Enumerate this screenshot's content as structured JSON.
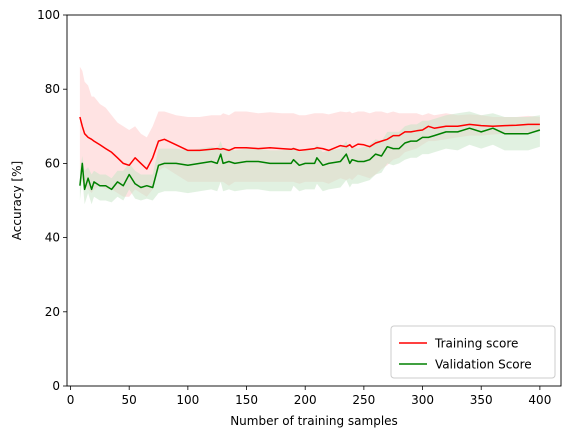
{
  "chart_data": {
    "type": "line",
    "title": "",
    "xlabel": "Number of training samples",
    "ylabel": "Accuracy [%]",
    "xlim": [
      -3,
      418
    ],
    "ylim": [
      0,
      100
    ],
    "x_ticks": [
      0,
      50,
      100,
      150,
      200,
      250,
      300,
      350,
      400
    ],
    "y_ticks": [
      0,
      20,
      40,
      60,
      80,
      100
    ],
    "grid": false,
    "legend_position": "lower-right",
    "x": [
      8,
      10,
      12,
      15,
      18,
      20,
      25,
      30,
      35,
      40,
      45,
      50,
      55,
      60,
      65,
      70,
      75,
      80,
      90,
      100,
      110,
      120,
      125,
      128,
      130,
      135,
      140,
      150,
      160,
      170,
      180,
      188,
      190,
      195,
      200,
      208,
      210,
      215,
      220,
      230,
      235,
      238,
      240,
      245,
      250,
      255,
      260,
      265,
      270,
      275,
      280,
      285,
      290,
      295,
      300,
      305,
      310,
      320,
      330,
      340,
      350,
      360,
      370,
      380,
      390,
      400
    ],
    "series": [
      {
        "name": "Training score",
        "color": "#ff0000",
        "band_color": "#ffcccc",
        "values": [
          72.5,
          70,
          68,
          67,
          66.5,
          66,
          65,
          64,
          63,
          61.5,
          60,
          59.5,
          61.5,
          60,
          58.5,
          61.5,
          66,
          66.5,
          65,
          63.5,
          63.5,
          63.8,
          64,
          63.8,
          64,
          63.5,
          64.2,
          64.2,
          64,
          64.2,
          64,
          63.8,
          64,
          63.5,
          63.7,
          64,
          64.2,
          64,
          63.5,
          64.8,
          64.5,
          65,
          64.3,
          65.2,
          65,
          64.5,
          65.5,
          66,
          66.5,
          67.5,
          67.5,
          68.5,
          68.5,
          68.8,
          69,
          70,
          69.5,
          70,
          70,
          70.5,
          70.2,
          70,
          70.2,
          70.3,
          70.5,
          70.5
        ],
        "upper": [
          86,
          85,
          82,
          81,
          78,
          78,
          76,
          75,
          73,
          71,
          70,
          69,
          70,
          68,
          67,
          70,
          74,
          74,
          73,
          72.5,
          72.5,
          73,
          73,
          73,
          73.5,
          73,
          74,
          74,
          73.5,
          73.8,
          73.5,
          73.5,
          73.5,
          73,
          73,
          73.5,
          73.5,
          73.5,
          73.2,
          74,
          73.8,
          74,
          73.5,
          74,
          74,
          73.5,
          74,
          74,
          73.5,
          74,
          73.5,
          73.5,
          73.5,
          73.5,
          73,
          73.5,
          73,
          73.5,
          73,
          73.2,
          73,
          72.5,
          72.5,
          72.5,
          72.8,
          72.5
        ],
        "lower": [
          58,
          55,
          54,
          53,
          52,
          53,
          54,
          53,
          53,
          52,
          51,
          51,
          53,
          52,
          51,
          53,
          58,
          59,
          57,
          55,
          55,
          55,
          55,
          55,
          55,
          54,
          55,
          55,
          55,
          55,
          55,
          55,
          55,
          54.5,
          55,
          55,
          55,
          55,
          54.5,
          56,
          55.5,
          56,
          55.5,
          57,
          56.5,
          56,
          57,
          58.5,
          59.5,
          61,
          61.5,
          63,
          63.5,
          64,
          65,
          66,
          66,
          66.5,
          67,
          67.5,
          67.5,
          67.8,
          68,
          68.2,
          68.3,
          68.5
        ]
      },
      {
        "name": "Validation Score",
        "color": "#008000",
        "band_color": "#c8e6c8",
        "values": [
          54,
          60,
          53,
          56,
          53,
          55,
          54,
          54,
          53,
          55,
          54,
          57,
          54.5,
          53.5,
          54,
          53.5,
          59.5,
          60,
          60,
          59.5,
          60,
          60.5,
          60,
          62.5,
          60,
          60.5,
          60,
          60.5,
          60.5,
          60,
          60,
          60,
          61,
          59.5,
          60,
          60,
          61.5,
          59.5,
          60,
          60.5,
          62.5,
          60,
          61,
          60.5,
          60.5,
          61,
          62.5,
          62,
          64.5,
          64,
          64,
          65.5,
          66,
          66,
          67,
          67,
          67.5,
          68.5,
          68.5,
          69.5,
          68.5,
          69.5,
          68,
          68,
          68,
          69
        ],
        "upper": [
          58,
          62,
          58,
          59,
          57,
          58,
          57,
          57,
          56,
          58,
          58,
          60,
          58,
          57,
          57,
          57,
          64,
          64,
          64,
          63.5,
          64,
          64.5,
          64,
          66,
          64,
          64,
          63.5,
          64,
          64,
          63.5,
          63.5,
          64,
          64.5,
          63,
          63.5,
          64,
          65,
          63,
          63.5,
          64,
          66,
          63.5,
          64.5,
          64,
          64.5,
          65,
          66.5,
          66,
          68.5,
          68.5,
          68.5,
          70,
          70.5,
          70.5,
          71.5,
          71.5,
          72,
          73,
          73.5,
          74,
          73,
          73.5,
          72.5,
          72.5,
          72.5,
          73
        ],
        "lower": [
          50,
          56,
          49,
          52,
          49,
          51,
          50,
          50,
          49.5,
          51,
          50,
          53,
          50.5,
          50,
          50.5,
          50,
          52,
          52.5,
          52.5,
          52,
          52.5,
          53,
          52.5,
          55,
          52.5,
          53,
          52.5,
          53,
          53,
          52.5,
          52.5,
          52.5,
          54,
          52.5,
          53,
          53,
          54.5,
          52.5,
          53,
          53.5,
          55.5,
          53.5,
          54.5,
          54.5,
          55,
          55.5,
          57,
          57.5,
          60,
          59.5,
          60,
          61,
          61.5,
          61.5,
          62.5,
          62.5,
          63,
          64,
          63.5,
          65,
          64,
          65,
          63.5,
          63.5,
          63.5,
          64.5
        ]
      }
    ]
  }
}
